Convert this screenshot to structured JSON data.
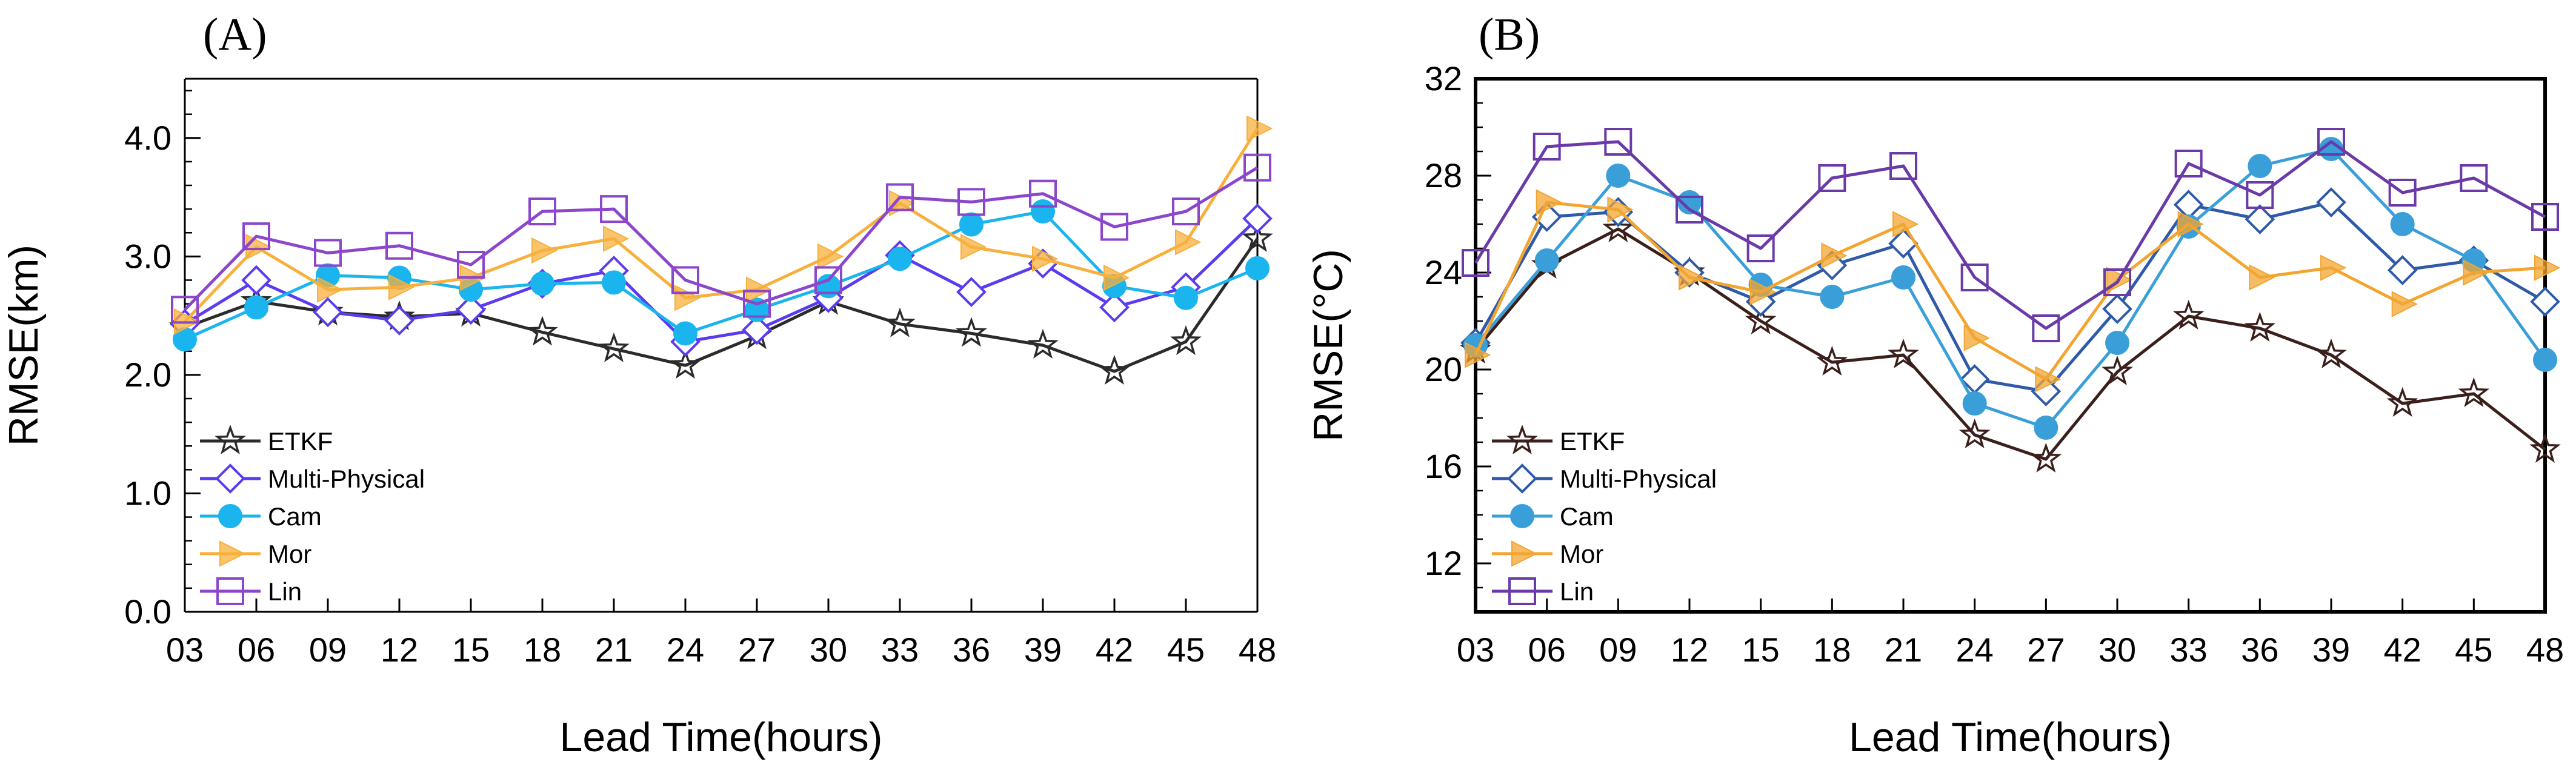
{
  "chart_data": [
    {
      "type": "line",
      "panel_label": "(A)",
      "xlabel": "Lead Time(hours)",
      "ylabel": "RMSE(km)",
      "categories": [
        "03",
        "06",
        "09",
        "12",
        "15",
        "18",
        "21",
        "24",
        "27",
        "30",
        "33",
        "36",
        "39",
        "42",
        "45",
        "48"
      ],
      "ylim": [
        0,
        4.5
      ],
      "yticks": [
        0,
        1,
        2,
        3,
        4
      ],
      "ytick_labels": [
        "0.0",
        "1.0",
        "2.0",
        "3.0",
        "4.0"
      ],
      "yminor_step": 0.2,
      "legend_position": "bottom-left",
      "series": [
        {
          "name": "ETKF",
          "color": "#2b2b2b",
          "marker": "star",
          "values": [
            2.4,
            2.62,
            2.53,
            2.49,
            2.52,
            2.36,
            2.22,
            2.08,
            2.33,
            2.62,
            2.43,
            2.35,
            2.25,
            2.03,
            2.28,
            3.15
          ]
        },
        {
          "name": "Multi-Physical",
          "color": "#5b3bf0",
          "marker": "diamond",
          "values": [
            2.43,
            2.8,
            2.53,
            2.46,
            2.55,
            2.77,
            2.88,
            2.28,
            2.38,
            2.65,
            3.01,
            2.7,
            2.94,
            2.57,
            2.74,
            3.32
          ]
        },
        {
          "name": "Cam",
          "color": "#1ab4ee",
          "marker": "circle",
          "values": [
            2.3,
            2.57,
            2.84,
            2.82,
            2.72,
            2.77,
            2.78,
            2.35,
            2.55,
            2.75,
            2.98,
            3.27,
            3.38,
            2.75,
            2.65,
            2.9
          ]
        },
        {
          "name": "Mor",
          "color": "#f7b03c",
          "marker": "triangle-right",
          "values": [
            2.45,
            3.08,
            2.72,
            2.74,
            2.82,
            3.05,
            3.15,
            2.65,
            2.72,
            3.0,
            3.45,
            3.08,
            2.98,
            2.82,
            3.12,
            4.08
          ]
        },
        {
          "name": "Lin",
          "color": "#8c46cc",
          "marker": "square",
          "values": [
            2.55,
            3.17,
            3.03,
            3.09,
            2.93,
            3.38,
            3.4,
            2.8,
            2.6,
            2.8,
            3.5,
            3.46,
            3.53,
            3.25,
            3.38,
            3.75
          ]
        }
      ]
    },
    {
      "type": "line",
      "panel_label": "(B)",
      "xlabel": "Lead Time(hours)",
      "ylabel": "RMSE(°C)",
      "categories": [
        "03",
        "06",
        "09",
        "12",
        "15",
        "18",
        "21",
        "24",
        "27",
        "30",
        "33",
        "36",
        "39",
        "42",
        "45",
        "48"
      ],
      "ylim": [
        10,
        32
      ],
      "yticks": [
        12,
        16,
        20,
        24,
        28,
        32
      ],
      "ytick_labels": [
        "12",
        "16",
        "20",
        "24",
        "28",
        "32"
      ],
      "yminor_step": 1,
      "legend_position": "bottom-left",
      "series": [
        {
          "name": "ETKF",
          "color": "#3a1f1b",
          "marker": "star",
          "values": [
            20.8,
            24.3,
            25.8,
            24.0,
            22.0,
            20.3,
            20.6,
            17.3,
            16.3,
            19.9,
            22.2,
            21.7,
            20.6,
            18.6,
            19.0,
            16.7
          ]
        },
        {
          "name": "Multi-Physical",
          "color": "#2e5aa8",
          "marker": "diamond",
          "values": [
            21.1,
            26.3,
            26.5,
            24.0,
            22.8,
            24.3,
            25.2,
            19.6,
            19.1,
            22.5,
            26.8,
            26.2,
            26.9,
            24.1,
            24.5,
            22.8
          ]
        },
        {
          "name": "Cam",
          "color": "#3a9fd8",
          "marker": "circle",
          "values": [
            21.0,
            24.5,
            28.0,
            26.9,
            23.5,
            23.0,
            23.8,
            18.6,
            17.6,
            21.1,
            25.9,
            28.4,
            29.1,
            26.0,
            24.5,
            20.4
          ]
        },
        {
          "name": "Mor",
          "color": "#f2a531",
          "marker": "triangle-right",
          "values": [
            20.6,
            26.9,
            26.6,
            23.8,
            23.2,
            24.7,
            26.0,
            21.3,
            19.6,
            23.7,
            26.0,
            23.8,
            24.2,
            22.7,
            24.0,
            24.2
          ]
        },
        {
          "name": "Lin",
          "color": "#6a3aa8",
          "marker": "square",
          "values": [
            24.4,
            29.2,
            29.4,
            26.6,
            25.0,
            27.9,
            28.4,
            23.8,
            21.7,
            23.6,
            28.5,
            27.2,
            29.4,
            27.3,
            27.9,
            26.3
          ]
        }
      ]
    }
  ]
}
